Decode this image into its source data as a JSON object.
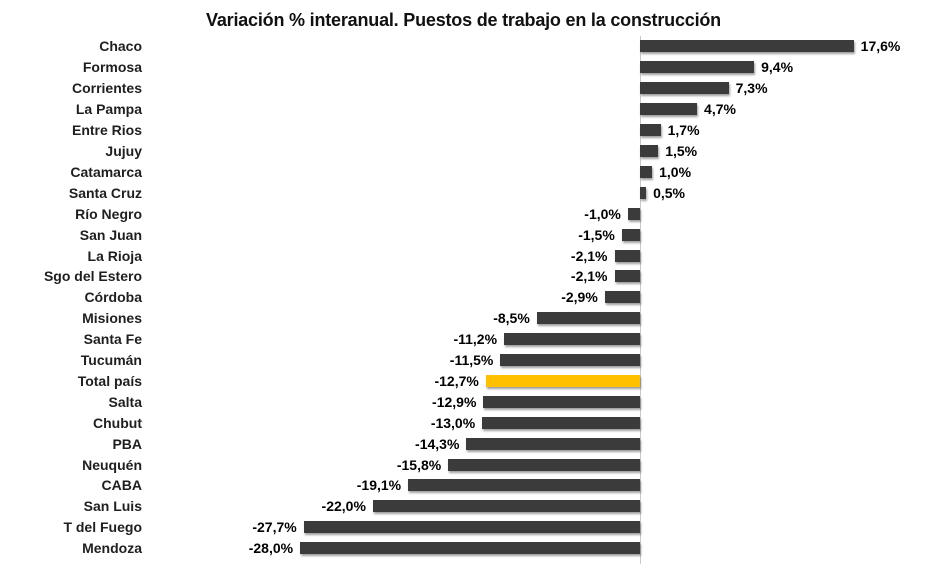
{
  "chart_data": {
    "type": "bar",
    "orientation": "horizontal",
    "title": "Variación % interanual. Puestos de trabajo en la construcción",
    "categories": [
      "Chaco",
      "Formosa",
      "Corrientes",
      "La Pampa",
      "Entre Rios",
      "Jujuy",
      "Catamarca",
      "Santa Cruz",
      "Río Negro",
      "San Juan",
      "La Rioja",
      "Sgo del Estero",
      "Córdoba",
      "Misiones",
      "Santa Fe",
      "Tucumán",
      "Total país",
      "Salta",
      "Chubut",
      "PBA",
      "Neuquén",
      "CABA",
      "San Luis",
      "T del Fuego",
      "Mendoza"
    ],
    "values": [
      17.6,
      9.4,
      7.3,
      4.7,
      1.7,
      1.5,
      1.0,
      0.5,
      -1.0,
      -1.5,
      -2.1,
      -2.1,
      -2.9,
      -8.5,
      -11.2,
      -11.5,
      -12.7,
      -12.9,
      -13.0,
      -14.3,
      -15.8,
      -19.1,
      -22.0,
      -27.7,
      -28.0
    ],
    "value_labels": [
      "17,6%",
      "9,4%",
      "7,3%",
      "4,7%",
      "1,7%",
      "1,5%",
      "1,0%",
      "0,5%",
      "-1,0%",
      "-1,5%",
      "-2,1%",
      "-2,1%",
      "-2,9%",
      "-8,5%",
      "-11,2%",
      "-11,5%",
      "-12,7%",
      "-12,9%",
      "-13,0%",
      "-14,3%",
      "-15,8%",
      "-19,1%",
      "-22,0%",
      "-27,7%",
      "-28,0%"
    ],
    "highlight_category": "Total país",
    "bar_color": "#3b3b3b",
    "highlight_color": "#ffc000",
    "axis_line_color": "#c8c8c8",
    "xlim": [
      -28.0,
      17.6
    ],
    "xlabel": "",
    "ylabel": "",
    "grid": false,
    "legend": false,
    "value_label_decimal_separator": ","
  }
}
